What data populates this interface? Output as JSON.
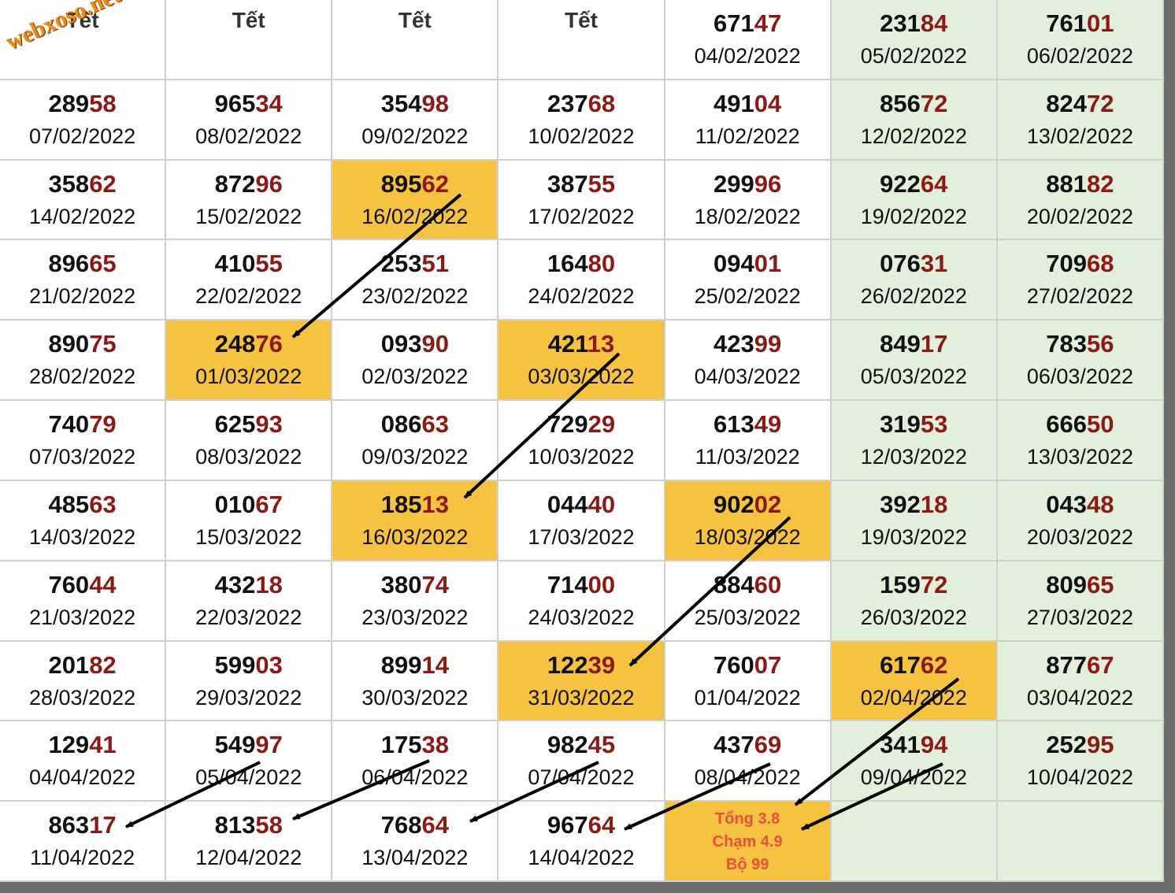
{
  "watermark": "webxoso.net",
  "table": {
    "rows": [
      [
        {
          "label": "Tết"
        },
        {
          "label": "Tết"
        },
        {
          "label": "Tết"
        },
        {
          "label": "Tết"
        },
        {
          "head": "671",
          "tail": "47",
          "date": "04/02/2022"
        },
        {
          "head": "231",
          "tail": "84",
          "date": "05/02/2022"
        },
        {
          "head": "761",
          "tail": "01",
          "date": "06/02/2022"
        }
      ],
      [
        {
          "head": "289",
          "tail": "58",
          "date": "07/02/2022"
        },
        {
          "head": "965",
          "tail": "34",
          "date": "08/02/2022"
        },
        {
          "head": "354",
          "tail": "98",
          "date": "09/02/2022"
        },
        {
          "head": "237",
          "tail": "68",
          "date": "10/02/2022"
        },
        {
          "head": "491",
          "tail": "04",
          "date": "11/02/2022"
        },
        {
          "head": "856",
          "tail": "72",
          "date": "12/02/2022"
        },
        {
          "head": "824",
          "tail": "72",
          "date": "13/02/2022"
        }
      ],
      [
        {
          "head": "358",
          "tail": "62",
          "date": "14/02/2022"
        },
        {
          "head": "872",
          "tail": "96",
          "date": "15/02/2022"
        },
        {
          "head": "895",
          "tail": "62",
          "date": "16/02/2022",
          "highlight": true
        },
        {
          "head": "387",
          "tail": "55",
          "date": "17/02/2022"
        },
        {
          "head": "299",
          "tail": "96",
          "date": "18/02/2022"
        },
        {
          "head": "922",
          "tail": "64",
          "date": "19/02/2022"
        },
        {
          "head": "881",
          "tail": "82",
          "date": "20/02/2022"
        }
      ],
      [
        {
          "head": "896",
          "tail": "65",
          "date": "21/02/2022"
        },
        {
          "head": "410",
          "tail": "55",
          "date": "22/02/2022"
        },
        {
          "head": "253",
          "tail": "51",
          "date": "23/02/2022"
        },
        {
          "head": "164",
          "tail": "80",
          "date": "24/02/2022"
        },
        {
          "head": "094",
          "tail": "01",
          "date": "25/02/2022"
        },
        {
          "head": "076",
          "tail": "31",
          "date": "26/02/2022"
        },
        {
          "head": "709",
          "tail": "68",
          "date": "27/02/2022"
        }
      ],
      [
        {
          "head": "890",
          "tail": "75",
          "date": "28/02/2022"
        },
        {
          "head": "248",
          "tail": "76",
          "date": "01/03/2022",
          "highlight": true
        },
        {
          "head": "093",
          "tail": "90",
          "date": "02/03/2022"
        },
        {
          "head": "421",
          "tail": "13",
          "date": "03/03/2022",
          "highlight": true
        },
        {
          "head": "423",
          "tail": "99",
          "date": "04/03/2022"
        },
        {
          "head": "849",
          "tail": "17",
          "date": "05/03/2022"
        },
        {
          "head": "783",
          "tail": "56",
          "date": "06/03/2022"
        }
      ],
      [
        {
          "head": "740",
          "tail": "79",
          "date": "07/03/2022"
        },
        {
          "head": "625",
          "tail": "93",
          "date": "08/03/2022"
        },
        {
          "head": "086",
          "tail": "63",
          "date": "09/03/2022"
        },
        {
          "head": "729",
          "tail": "29",
          "date": "10/03/2022"
        },
        {
          "head": "613",
          "tail": "49",
          "date": "11/03/2022"
        },
        {
          "head": "319",
          "tail": "53",
          "date": "12/03/2022"
        },
        {
          "head": "666",
          "tail": "50",
          "date": "13/03/2022"
        }
      ],
      [
        {
          "head": "485",
          "tail": "63",
          "date": "14/03/2022"
        },
        {
          "head": "010",
          "tail": "67",
          "date": "15/03/2022"
        },
        {
          "head": "185",
          "tail": "13",
          "date": "16/03/2022",
          "highlight": true
        },
        {
          "head": "044",
          "tail": "40",
          "date": "17/03/2022"
        },
        {
          "head": "902",
          "tail": "02",
          "date": "18/03/2022",
          "highlight": true
        },
        {
          "head": "392",
          "tail": "18",
          "date": "19/03/2022"
        },
        {
          "head": "043",
          "tail": "48",
          "date": "20/03/2022"
        }
      ],
      [
        {
          "head": "760",
          "tail": "44",
          "date": "21/03/2022"
        },
        {
          "head": "432",
          "tail": "18",
          "date": "22/03/2022"
        },
        {
          "head": "380",
          "tail": "74",
          "date": "23/03/2022"
        },
        {
          "head": "714",
          "tail": "00",
          "date": "24/03/2022"
        },
        {
          "head": "884",
          "tail": "60",
          "date": "25/03/2022"
        },
        {
          "head": "159",
          "tail": "72",
          "date": "26/03/2022"
        },
        {
          "head": "809",
          "tail": "65",
          "date": "27/03/2022"
        }
      ],
      [
        {
          "head": "201",
          "tail": "82",
          "date": "28/03/2022"
        },
        {
          "head": "599",
          "tail": "03",
          "date": "29/03/2022"
        },
        {
          "head": "899",
          "tail": "14",
          "date": "30/03/2022"
        },
        {
          "head": "122",
          "tail": "39",
          "date": "31/03/2022",
          "highlight": true
        },
        {
          "head": "760",
          "tail": "07",
          "date": "01/04/2022"
        },
        {
          "head": "617",
          "tail": "62",
          "date": "02/04/2022",
          "highlight": true
        },
        {
          "head": "877",
          "tail": "67",
          "date": "03/04/2022"
        }
      ],
      [
        {
          "head": "129",
          "tail": "41",
          "date": "04/04/2022"
        },
        {
          "head": "549",
          "tail": "97",
          "date": "05/04/2022"
        },
        {
          "head": "175",
          "tail": "38",
          "date": "06/04/2022"
        },
        {
          "head": "982",
          "tail": "45",
          "date": "07/04/2022"
        },
        {
          "head": "437",
          "tail": "69",
          "date": "08/04/2022"
        },
        {
          "head": "341",
          "tail": "94",
          "date": "09/04/2022"
        },
        {
          "head": "252",
          "tail": "95",
          "date": "10/04/2022"
        }
      ],
      [
        {
          "head": "863",
          "tail": "17",
          "date": "11/04/2022"
        },
        {
          "head": "813",
          "tail": "58",
          "date": "12/04/2022"
        },
        {
          "head": "768",
          "tail": "64",
          "date": "13/04/2022"
        },
        {
          "head": "967",
          "tail": "64",
          "date": "14/04/2022"
        },
        {
          "lines": [
            "Tổng 3.8",
            "Chạm 4.9",
            "Bộ 99"
          ],
          "highlight": true
        },
        null,
        null
      ]
    ]
  }
}
